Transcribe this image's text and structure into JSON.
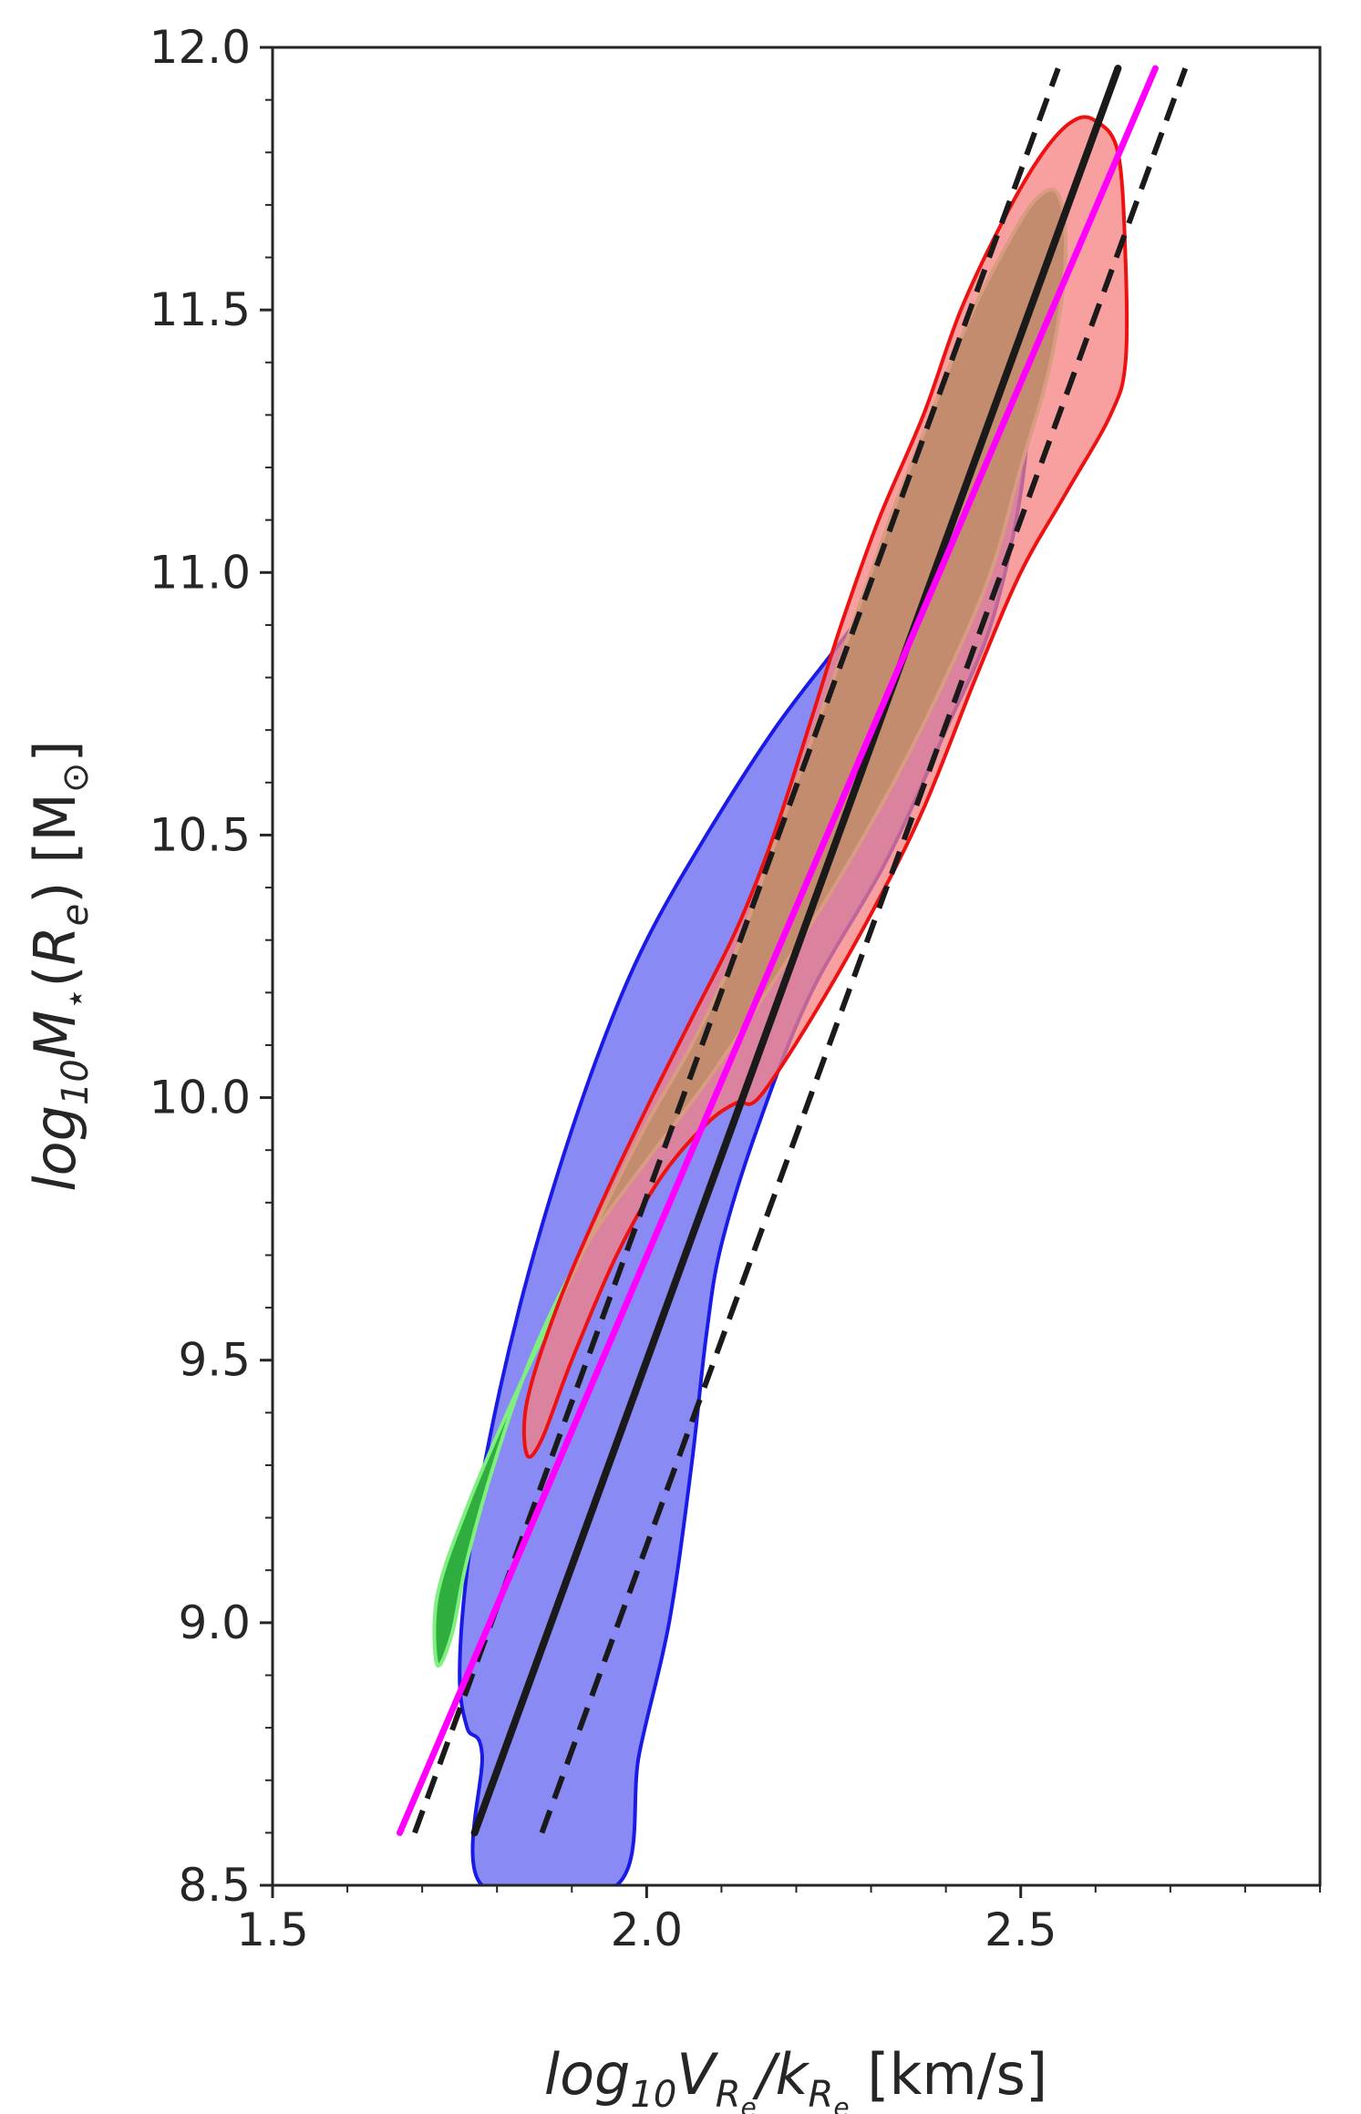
{
  "chart_data": {
    "type": "contour",
    "xlabel": {
      "main": "log",
      "sub1": "10",
      "v": "V",
      "vsub": "R",
      "vsubsub": "e",
      "slash": "/",
      "k": "k",
      "ksub": "R",
      "ksubsub": "e",
      "units": " [km/s]"
    },
    "ylabel": {
      "main": "log",
      "sub1": "10",
      "m": "M",
      "star": "⋆",
      "paren_open": "(",
      "r": "R",
      "rsub": "e",
      "paren_close": ")",
      "units_open": " [M",
      "sun": "⊙",
      "units_close": "]"
    },
    "xlim": [
      1.5,
      2.9
    ],
    "ylim": [
      8.5,
      12.0
    ],
    "xticks": [
      {
        "value": 1.5,
        "label": "1.5"
      },
      {
        "value": 2.0,
        "label": "2.0"
      },
      {
        "value": 2.5,
        "label": "2.5"
      }
    ],
    "yticks": [
      {
        "value": 8.5,
        "label": "8.5"
      },
      {
        "value": 9.0,
        "label": "9.0"
      },
      {
        "value": 9.5,
        "label": "9.5"
      },
      {
        "value": 10.0,
        "label": "10.0"
      },
      {
        "value": 10.5,
        "label": "10.5"
      },
      {
        "value": 11.0,
        "label": "11.0"
      },
      {
        "value": 11.5,
        "label": "11.5"
      },
      {
        "value": 12.0,
        "label": "12.0"
      }
    ],
    "x_minor_step": 0.1,
    "y_minor_step": 0.1,
    "grid": false,
    "regions": [
      {
        "name": "",
        "fill": "#8a8af5",
        "stroke": "#1a1ae6",
        "points": [
          [
            1.78,
            8.5
          ],
          [
            1.78,
            8.75
          ],
          [
            1.76,
            8.8
          ],
          [
            1.75,
            8.9
          ],
          [
            1.76,
            9.1
          ],
          [
            1.79,
            9.35
          ],
          [
            1.83,
            9.6
          ],
          [
            1.88,
            9.85
          ],
          [
            1.94,
            10.1
          ],
          [
            2.0,
            10.3
          ],
          [
            2.08,
            10.5
          ],
          [
            2.17,
            10.7
          ],
          [
            2.25,
            10.85
          ],
          [
            2.33,
            11.0
          ],
          [
            2.4,
            11.15
          ],
          [
            2.46,
            11.3
          ],
          [
            2.49,
            11.38
          ],
          [
            2.51,
            11.35
          ],
          [
            2.5,
            11.15
          ],
          [
            2.46,
            10.9
          ],
          [
            2.4,
            10.7
          ],
          [
            2.32,
            10.45
          ],
          [
            2.22,
            10.2
          ],
          [
            2.15,
            9.95
          ],
          [
            2.1,
            9.72
          ],
          [
            2.08,
            9.55
          ],
          [
            2.06,
            9.3
          ],
          [
            2.03,
            9.0
          ],
          [
            1.99,
            8.75
          ],
          [
            1.96,
            8.5
          ]
        ]
      },
      {
        "name": "",
        "fill": "#2fae3f",
        "stroke": "#7fef7f",
        "points": [
          [
            1.72,
            8.92
          ],
          [
            1.72,
            9.05
          ],
          [
            1.76,
            9.22
          ],
          [
            1.82,
            9.42
          ],
          [
            1.88,
            9.6
          ],
          [
            1.94,
            9.78
          ],
          [
            2.0,
            9.95
          ],
          [
            2.06,
            10.1
          ],
          [
            2.12,
            10.28
          ],
          [
            2.17,
            10.48
          ],
          [
            2.22,
            10.68
          ],
          [
            2.28,
            10.92
          ],
          [
            2.33,
            11.12
          ],
          [
            2.38,
            11.3
          ],
          [
            2.43,
            11.48
          ],
          [
            2.48,
            11.62
          ],
          [
            2.52,
            11.71
          ],
          [
            2.55,
            11.72
          ],
          [
            2.56,
            11.6
          ],
          [
            2.54,
            11.4
          ],
          [
            2.5,
            11.2
          ],
          [
            2.46,
            11.0
          ],
          [
            2.4,
            10.8
          ],
          [
            2.33,
            10.6
          ],
          [
            2.25,
            10.4
          ],
          [
            2.16,
            10.2
          ],
          [
            2.08,
            10.03
          ],
          [
            2.0,
            9.88
          ],
          [
            1.92,
            9.72
          ],
          [
            1.85,
            9.52
          ],
          [
            1.8,
            9.32
          ],
          [
            1.76,
            9.12
          ],
          [
            1.74,
            8.98
          ]
        ]
      },
      {
        "name": "",
        "fill": "#f58080",
        "fill_opacity": 0.75,
        "stroke": "#ee1111",
        "points": [
          [
            1.84,
            9.32
          ],
          [
            1.84,
            9.42
          ],
          [
            1.88,
            9.6
          ],
          [
            1.94,
            9.8
          ],
          [
            2.0,
            9.98
          ],
          [
            2.06,
            10.15
          ],
          [
            2.12,
            10.32
          ],
          [
            2.17,
            10.5
          ],
          [
            2.22,
            10.72
          ],
          [
            2.26,
            10.9
          ],
          [
            2.31,
            11.1
          ],
          [
            2.37,
            11.3
          ],
          [
            2.42,
            11.5
          ],
          [
            2.48,
            11.68
          ],
          [
            2.53,
            11.8
          ],
          [
            2.57,
            11.86
          ],
          [
            2.6,
            11.86
          ],
          [
            2.63,
            11.8
          ],
          [
            2.64,
            11.6
          ],
          [
            2.64,
            11.4
          ],
          [
            2.62,
            11.3
          ],
          [
            2.56,
            11.15
          ],
          [
            2.5,
            11.0
          ],
          [
            2.44,
            10.8
          ],
          [
            2.37,
            10.55
          ],
          [
            2.3,
            10.35
          ],
          [
            2.22,
            10.15
          ],
          [
            2.15,
            10.0
          ],
          [
            2.12,
            9.99
          ],
          [
            2.08,
            9.95
          ],
          [
            2.02,
            9.85
          ],
          [
            1.96,
            9.7
          ],
          [
            1.9,
            9.5
          ],
          [
            1.86,
            9.35
          ]
        ]
      }
    ],
    "lines": [
      {
        "name": "",
        "color": "#1a1a1a",
        "dash": false,
        "width": 8,
        "points": [
          [
            1.77,
            8.6
          ],
          [
            2.63,
            11.96
          ]
        ]
      },
      {
        "name": "",
        "color": "#1a1a1a",
        "dash": true,
        "width": 6,
        "points": [
          [
            1.69,
            8.6
          ],
          [
            2.55,
            11.96
          ]
        ]
      },
      {
        "name": "",
        "color": "#1a1a1a",
        "dash": true,
        "width": 6,
        "points": [
          [
            1.86,
            8.6
          ],
          [
            2.72,
            11.96
          ]
        ]
      },
      {
        "name": "",
        "color": "#ff00ff",
        "dash": false,
        "width": 7,
        "points": [
          [
            1.67,
            8.6
          ],
          [
            2.68,
            11.96
          ]
        ]
      }
    ]
  }
}
